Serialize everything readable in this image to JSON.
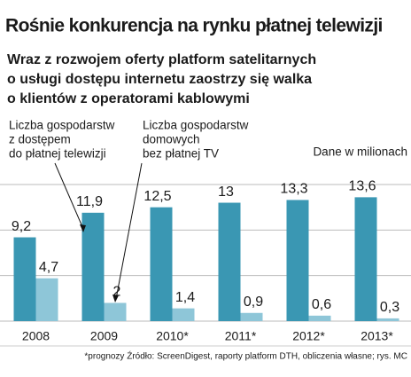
{
  "chart_data": {
    "type": "bar",
    "title": "Rośnie konkurencja na rynku płatnej telewizji",
    "subtitle": [
      "Wraz z rozwojem oferty platform satelitarnych",
      "o usługi dostępu internetu zaostrzy się walka",
      "o klientów z operatorami kablowymi"
    ],
    "annotations": [
      [
        "Liczba gospodarstw",
        "z dostępem",
        "do płatnej telewizji"
      ],
      [
        "Liczba gospodarstw",
        "domowych",
        "bez płatnej TV"
      ]
    ],
    "unit_note": "Dane w milionach",
    "categories": [
      "2008",
      "2009",
      "2010*",
      "2011*",
      "2012*",
      "2013*"
    ],
    "series": [
      {
        "color": "#3a97b3",
        "values": [
          9.2,
          11.9,
          12.5,
          13,
          13.3,
          13.6
        ],
        "value_labels": [
          "9,2",
          "11,9",
          "12,5",
          "13",
          "13,3",
          "13,6"
        ]
      },
      {
        "color": "#8ec6d8",
        "values": [
          4.7,
          2,
          1.4,
          0.9,
          0.6,
          0.3
        ],
        "value_labels": [
          "4,7",
          "2",
          "1,4",
          "0,9",
          "0,6",
          "0,3"
        ]
      }
    ],
    "ylim": [
      0,
      15
    ],
    "yticks": [
      0,
      5,
      10,
      15
    ],
    "grid": true,
    "footnote": "*prognozy  Źródło: ScreenDigest, raporty platform DTH, obliczenia własne;  rys. MC"
  }
}
